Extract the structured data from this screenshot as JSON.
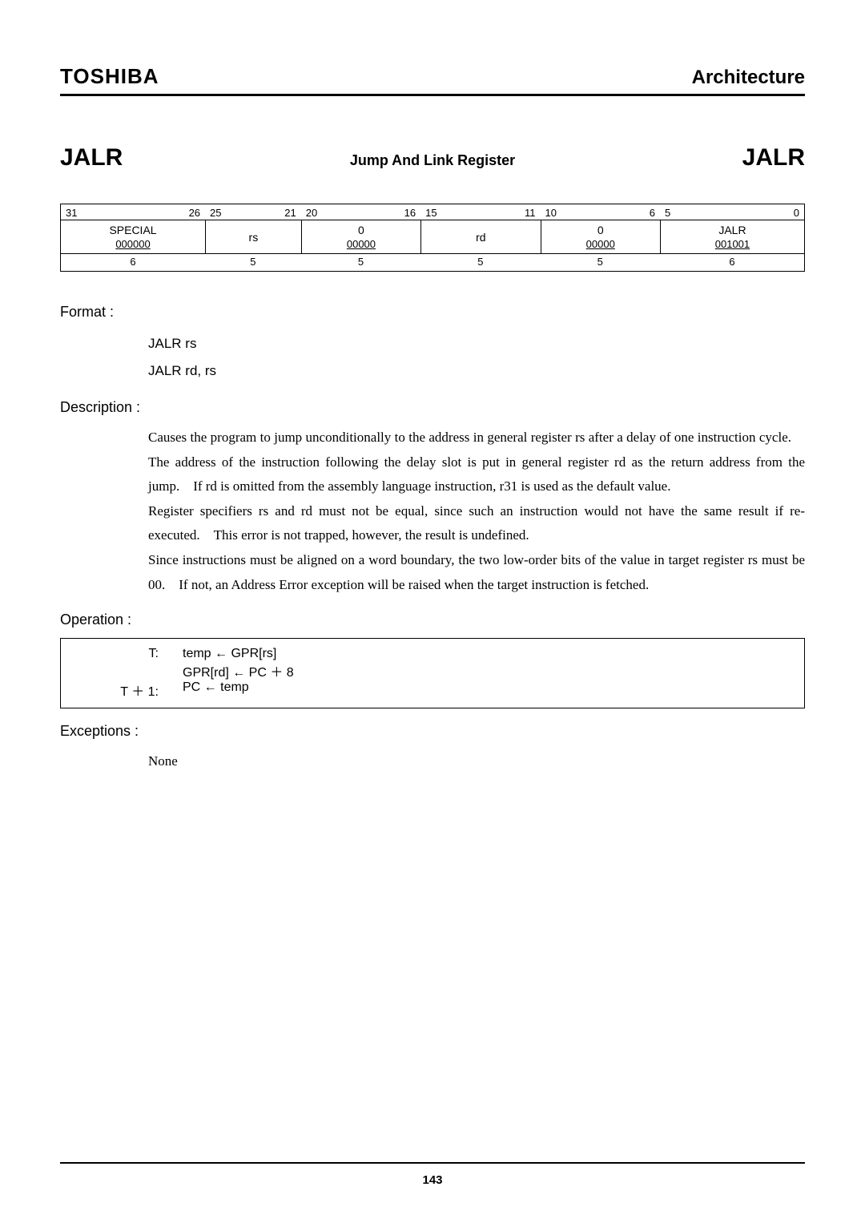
{
  "header": {
    "brand": "TOSHIBA",
    "section": "Architecture"
  },
  "title": {
    "left": "JALR",
    "center": "Jump And Link Register",
    "right": "JALR"
  },
  "encoding": {
    "bits": [
      {
        "hi": "31",
        "lo": "26",
        "w": "c6a"
      },
      {
        "hi": "25",
        "lo": "21",
        "w": "c5a"
      },
      {
        "hi": "20",
        "lo": "16",
        "w": "c5b"
      },
      {
        "hi": "15",
        "lo": "11",
        "w": "c5c"
      },
      {
        "hi": "10",
        "lo": "6",
        "w": "c5d"
      },
      {
        "hi": "5",
        "lo": "0",
        "w": "c6b"
      }
    ],
    "fields": [
      {
        "name": "SPECIAL",
        "val": "000000",
        "w": "c6a",
        "underline": true
      },
      {
        "name": "rs",
        "val": "",
        "w": "c5a",
        "underline": false
      },
      {
        "name": "0",
        "val": "00000",
        "w": "c5b",
        "underline": true
      },
      {
        "name": "rd",
        "val": "",
        "w": "c5c",
        "underline": false
      },
      {
        "name": "0",
        "val": "00000",
        "w": "c5d",
        "underline": true
      },
      {
        "name": "JALR",
        "val": "001001",
        "w": "c6b",
        "underline": true
      }
    ],
    "widths": [
      "6",
      "5",
      "5",
      "5",
      "5",
      "6"
    ]
  },
  "format": {
    "label": "Format :",
    "lines": [
      "JALR rs",
      "JALR rd, rs"
    ]
  },
  "description": {
    "label": "Description :",
    "text": "Causes the program to jump unconditionally to the address in general register rs after a delay of one instruction cycle. The address of the instruction following the delay slot is put in general register rd as the return address from the jump. If rd is omitted from the assembly language instruction, r31 is used as the default value.\nRegister specifiers rs and rd must not be equal, since such an instruction would not have the same result if re-executed. This error is not trapped, however, the result is undefined.\nSince instructions must be aligned on a word boundary, the two low-order bits of the value in target register rs must be 00. If not, an Address Error exception will be raised when the target instruction is fetched."
  },
  "operation": {
    "label": "Operation :",
    "rows": [
      {
        "label": "T:",
        "code": "temp ← GPR[rs]"
      },
      {
        "label": "",
        "code": "GPR[rd] ← PC ＋ 8"
      },
      {
        "label": "T ＋ 1:",
        "code": "PC ← temp"
      }
    ]
  },
  "exceptions": {
    "label": "Exceptions :",
    "text": "None"
  },
  "page_number": "143"
}
